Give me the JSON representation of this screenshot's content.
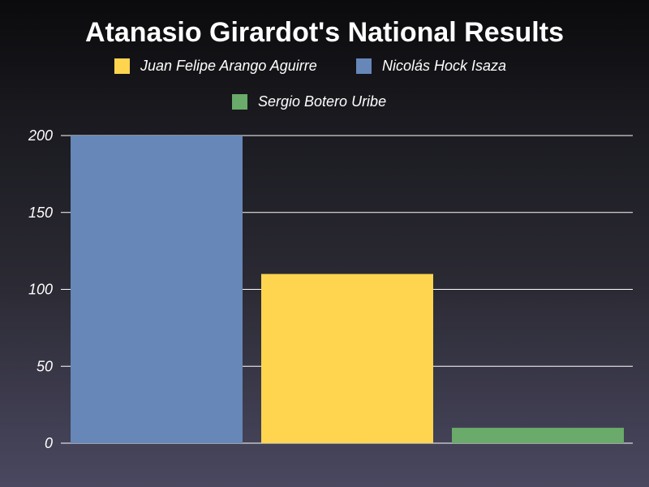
{
  "chart_data": {
    "type": "bar",
    "title": "Atanasio Girardot's National Results",
    "xlabel": "",
    "ylabel": "",
    "categories": [
      "Nicolás Hock Isaza",
      "Juan Felipe Arango Aguirre",
      "Sergio Botero Uribe"
    ],
    "values": [
      200,
      110,
      10
    ],
    "colors": [
      "#6687b8",
      "#ffd54f",
      "#6aaa6a"
    ],
    "ylim": [
      0,
      200
    ],
    "yticks": [
      0,
      50,
      100,
      150,
      200
    ],
    "grid": true,
    "legend": {
      "placement": "top",
      "entries": [
        {
          "name": "Juan Felipe Arango Aguirre",
          "color": "#ffd54f"
        },
        {
          "name": "Nicolás Hock Isaza",
          "color": "#6687b8"
        },
        {
          "name": "Sergio Botero Uribe",
          "color": "#6aaa6a"
        }
      ]
    }
  }
}
